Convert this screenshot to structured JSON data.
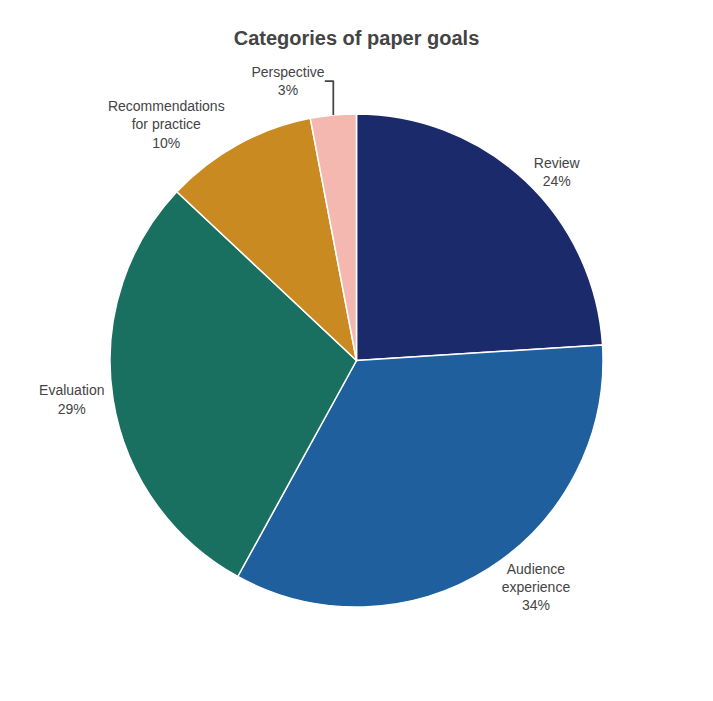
{
  "chart_data": {
    "type": "pie",
    "title": "Categories of paper goals",
    "categories": [
      "Review",
      "Audience\nexperience",
      "Evaluation",
      "Recommendations\nfor practice",
      "Perspective"
    ],
    "values": [
      24,
      34,
      29,
      10,
      3
    ],
    "value_labels": [
      "24%",
      "34%",
      "29%",
      "10%",
      "3%"
    ],
    "data_labels": true,
    "colors": [
      "#1b2a6b",
      "#1f5f9e",
      "#1a7060",
      "#c98a22",
      "#f4b8b0"
    ]
  }
}
